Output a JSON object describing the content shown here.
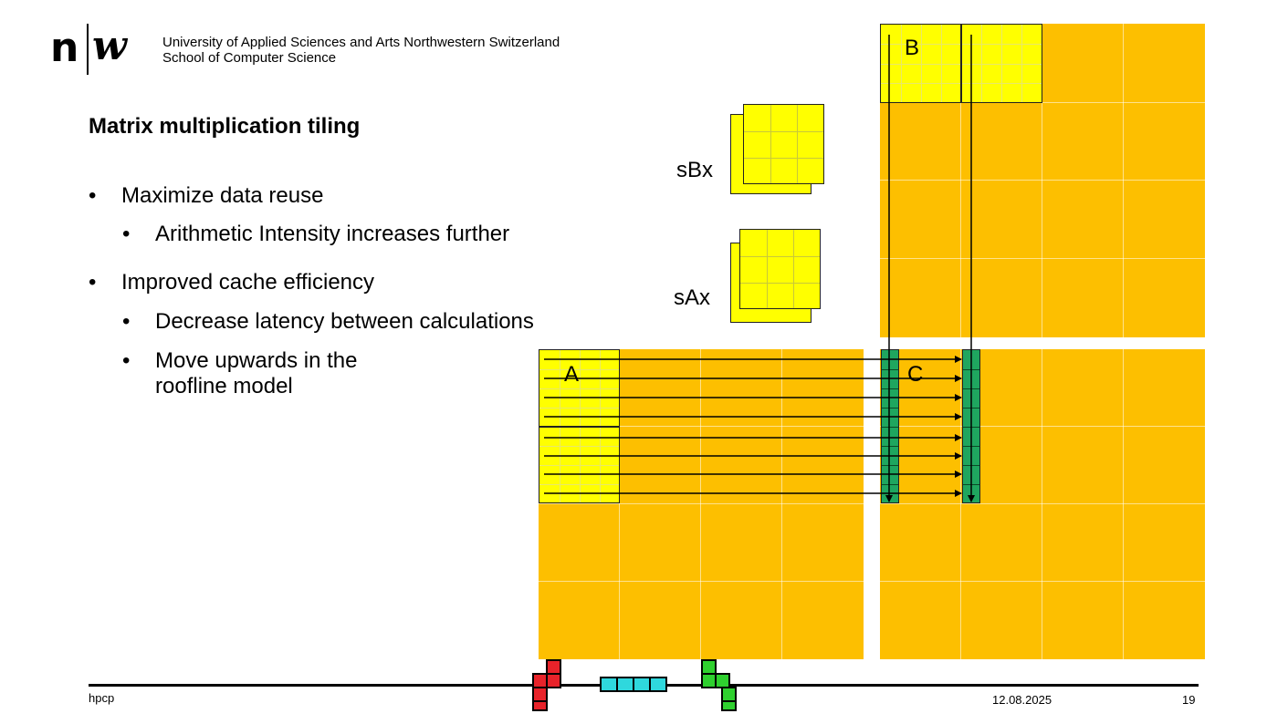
{
  "header": {
    "logo_n": "n",
    "logo_w": "w",
    "institution_line1": "University of Applied Sciences and Arts Northwestern Switzerland",
    "institution_line2": "School of Computer Science"
  },
  "slide": {
    "title": "Matrix multiplication tiling",
    "bullet_marker": "•",
    "bullets": [
      {
        "text": "Maximize data reuse",
        "sub": [
          "Arithmetic Intensity increases further"
        ]
      },
      {
        "text": "Improved cache efficiency",
        "sub": [
          "Decrease latency between calculations",
          "Move upwards in the roofline model"
        ]
      }
    ]
  },
  "diagram": {
    "label_a": "A",
    "label_b": "B",
    "label_c": "C",
    "label_sbx": "sBx",
    "label_sax": "sAx",
    "colors": {
      "matrix": "#fdbf00",
      "tile": "#ffff00",
      "result_column": "#1fa65f"
    }
  },
  "footer": {
    "left": "hpcp",
    "date": "12.08.2025",
    "page": "19"
  }
}
